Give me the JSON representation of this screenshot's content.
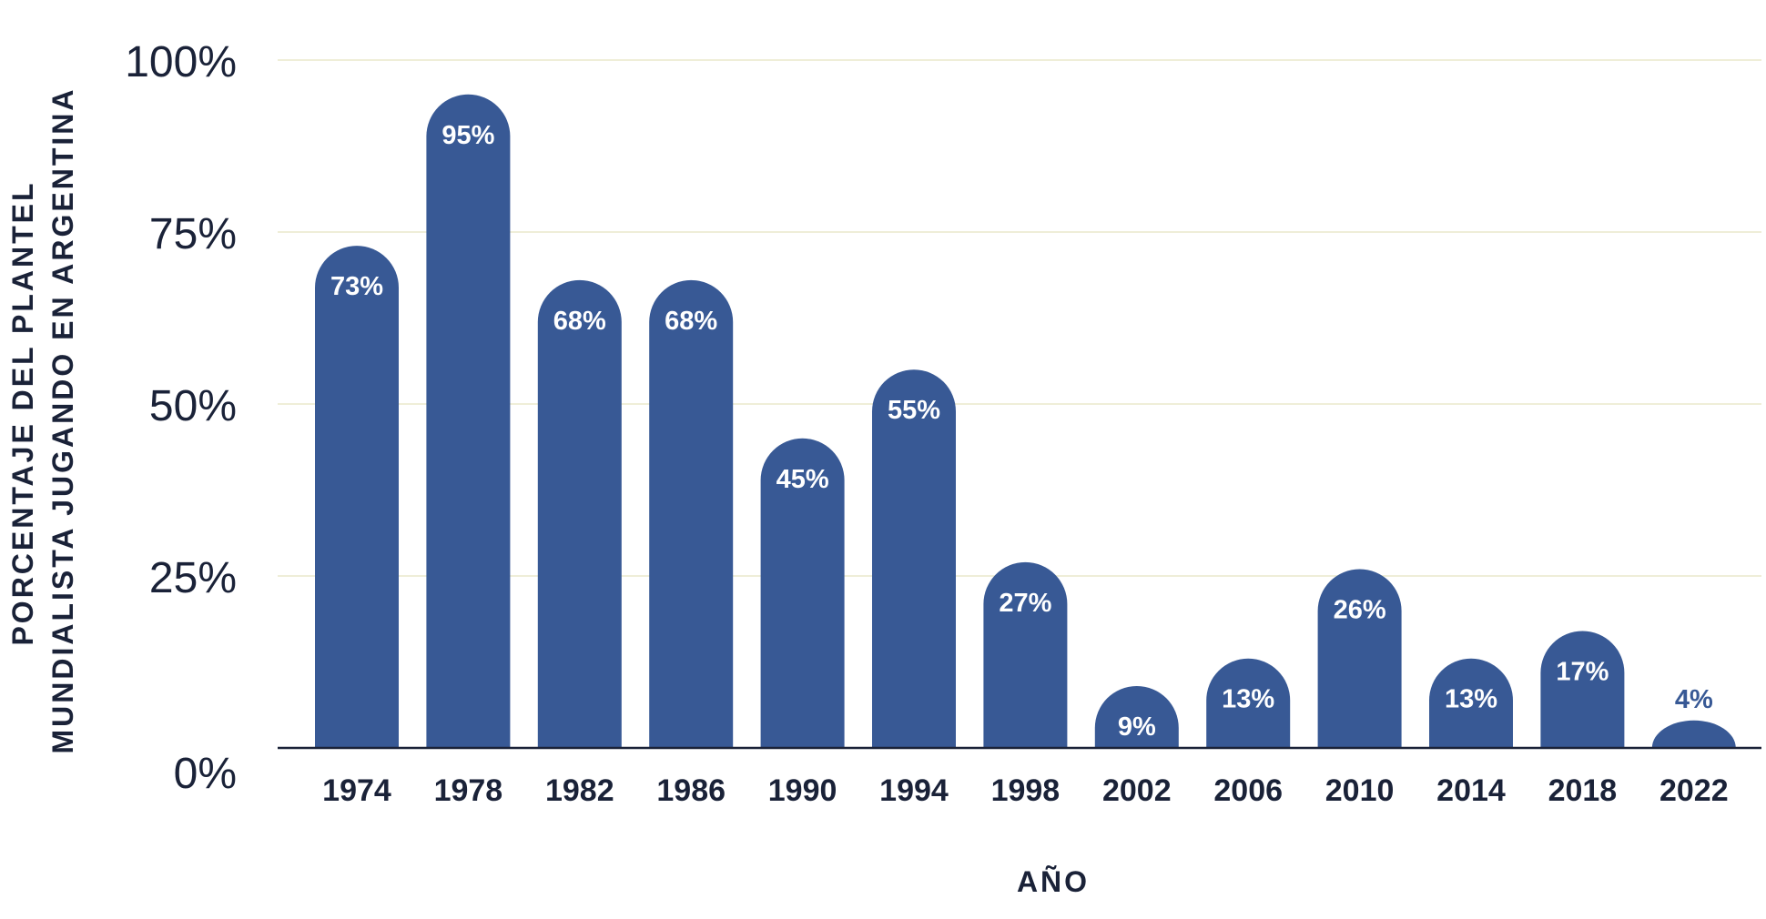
{
  "colors": {
    "bar": "#385995",
    "grid": "#efeed8",
    "axis": "#1a2238",
    "text": "#1a2238",
    "label_inside": "#ffffff"
  },
  "chart_data": {
    "type": "bar",
    "title": "",
    "xlabel": "AÑO",
    "ylabel_lines": [
      "PORCENTAJE DEL PLANTEL",
      "MUNDIALISTA JUGANDO EN ARGENTINA"
    ],
    "categories": [
      "1974",
      "1978",
      "1982",
      "1986",
      "1990",
      "1994",
      "1998",
      "2002",
      "2006",
      "2010",
      "2014",
      "2018",
      "2022"
    ],
    "values": [
      73,
      95,
      68,
      68,
      45,
      55,
      27,
      9,
      13,
      26,
      13,
      17,
      4
    ],
    "value_labels": [
      "73%",
      "95%",
      "68%",
      "68%",
      "45%",
      "55%",
      "27%",
      "9%",
      "13%",
      "26%",
      "13%",
      "17%",
      "4%"
    ],
    "ylim": [
      0,
      100
    ],
    "yticks": [
      0,
      25,
      50,
      75,
      100
    ],
    "ytick_labels": [
      "0%",
      "25%",
      "50%",
      "75%",
      "100%"
    ],
    "grid": true,
    "legend": "none"
  }
}
